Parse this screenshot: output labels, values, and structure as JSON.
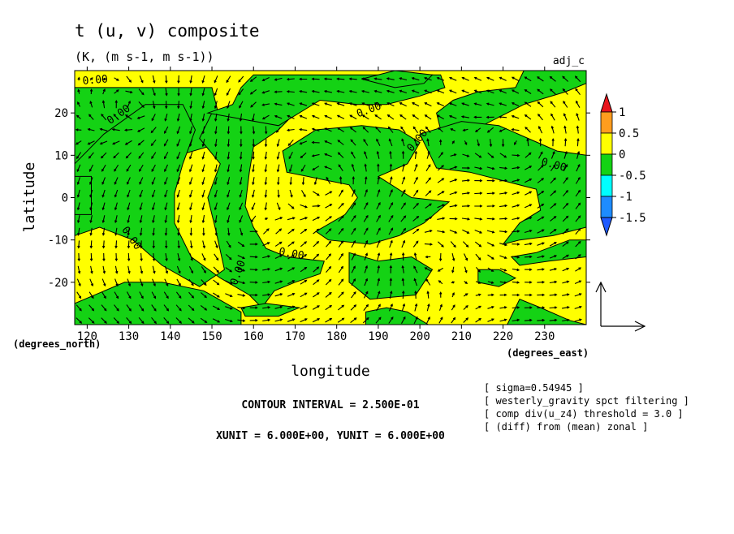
{
  "chart_data": {
    "type": "contour-vector",
    "title": "t (u, v) composite",
    "subtitle": "(K, (m s-1, m s-1))",
    "corner_label": "adj_c",
    "xlabel": "longitude",
    "ylabel": "latitude",
    "x_unit_label": "(degrees_east)",
    "y_unit_label": "(degrees_north)",
    "xlim": [
      117,
      240
    ],
    "ylim": [
      -30,
      30
    ],
    "x_ticks": [
      120,
      130,
      140,
      150,
      160,
      170,
      180,
      190,
      200,
      210,
      220,
      230
    ],
    "y_ticks": [
      -20,
      -10,
      0,
      10,
      20
    ],
    "colorbar": {
      "levels": [
        1,
        0.5,
        0,
        -0.5,
        -1,
        -1.5
      ],
      "colors": [
        "#e8141c",
        "#ff9d1e",
        "#ffff00",
        "#14d214",
        "#00ffff",
        "#1e8cff",
        "#1e5aff"
      ]
    },
    "background_color": "#ffff00",
    "contour_label": "0.00",
    "green_regions": [
      {
        "name": "west-band",
        "lonlat": [
          [
            117,
            26
          ],
          [
            150,
            26
          ],
          [
            152,
            18
          ],
          [
            149,
            12
          ],
          [
            135,
            8
          ],
          [
            128,
            2
          ],
          [
            133,
            -2
          ],
          [
            126,
            -5
          ],
          [
            117,
            -6
          ]
        ]
      },
      {
        "name": "west-arc",
        "lonlat": [
          [
            117,
            8
          ],
          [
            124,
            15
          ],
          [
            134,
            22
          ],
          [
            143,
            22
          ],
          [
            146,
            16
          ],
          [
            143,
            8
          ],
          [
            141,
            1
          ],
          [
            141,
            -6
          ],
          [
            145,
            -14
          ],
          [
            152,
            -19
          ],
          [
            159,
            -23
          ],
          [
            162,
            -26
          ],
          [
            165,
            -22
          ],
          [
            170,
            -20
          ],
          [
            176,
            -18
          ],
          [
            177,
            -15
          ],
          [
            168,
            -14
          ],
          [
            163,
            -12
          ],
          [
            160,
            -7
          ],
          [
            158,
            -2
          ],
          [
            159,
            6
          ],
          [
            160,
            12
          ],
          [
            166,
            16
          ],
          [
            169,
            19
          ],
          [
            159,
            22
          ],
          [
            150,
            20
          ],
          [
            147,
            14
          ],
          [
            152,
            8
          ],
          [
            149,
            0
          ],
          [
            151,
            -8
          ],
          [
            153,
            -17
          ],
          [
            147,
            -21
          ],
          [
            138,
            -16
          ],
          [
            131,
            -10
          ],
          [
            123,
            -7
          ],
          [
            117,
            -9
          ]
        ]
      },
      {
        "name": "south-west",
        "lonlat": [
          [
            117,
            -25
          ],
          [
            129,
            -20
          ],
          [
            138,
            -20
          ],
          [
            148,
            -22
          ],
          [
            157,
            -27
          ],
          [
            157,
            -30
          ],
          [
            117,
            -30
          ]
        ]
      },
      {
        "name": "central",
        "lonlat": [
          [
            166,
            17
          ],
          [
            176,
            23
          ],
          [
            185,
            22
          ],
          [
            192,
            22
          ],
          [
            200,
            24
          ],
          [
            206,
            26
          ],
          [
            205,
            29
          ],
          [
            160,
            29
          ],
          [
            157,
            26
          ],
          [
            155,
            22
          ],
          [
            149,
            20
          ]
        ]
      },
      {
        "name": "central-2",
        "lonlat": [
          [
            167,
            11
          ],
          [
            175,
            16
          ],
          [
            186,
            17
          ],
          [
            195,
            16
          ],
          [
            200,
            13
          ],
          [
            197,
            8
          ],
          [
            190,
            5
          ],
          [
            198,
            0
          ],
          [
            207,
            -1
          ],
          [
            201,
            -6
          ],
          [
            195,
            -9
          ],
          [
            188,
            -11
          ],
          [
            178,
            -10
          ],
          [
            175,
            -8
          ],
          [
            182,
            -4
          ],
          [
            185,
            0
          ],
          [
            183,
            3
          ],
          [
            178,
            4
          ],
          [
            168,
            6
          ]
        ]
      },
      {
        "name": "east-top",
        "lonlat": [
          [
            205,
            16
          ],
          [
            215,
            17
          ],
          [
            225,
            22
          ],
          [
            235,
            25
          ],
          [
            240,
            27
          ],
          [
            240,
            30
          ],
          [
            225,
            30
          ],
          [
            223,
            26
          ],
          [
            214,
            25
          ],
          [
            208,
            23
          ],
          [
            204,
            20
          ]
        ]
      },
      {
        "name": "east-mid",
        "lonlat": [
          [
            200,
            15
          ],
          [
            210,
            18
          ],
          [
            219,
            17
          ],
          [
            226,
            14
          ],
          [
            233,
            11
          ],
          [
            240,
            10
          ],
          [
            240,
            -7
          ],
          [
            232,
            -9
          ],
          [
            224,
            -10
          ],
          [
            220,
            -11
          ],
          [
            224,
            -6
          ],
          [
            229,
            -3
          ],
          [
            228,
            2
          ],
          [
            220,
            4
          ],
          [
            212,
            6
          ],
          [
            204,
            7
          ]
        ]
      },
      {
        "name": "top-right-blob",
        "lonlat": [
          [
            186,
            28
          ],
          [
            194,
            26
          ],
          [
            201,
            27
          ],
          [
            203,
            29
          ],
          [
            194,
            30
          ]
        ]
      },
      {
        "name": "sub-south",
        "lonlat": [
          [
            183,
            -13
          ],
          [
            190,
            -15
          ],
          [
            198,
            -14
          ],
          [
            203,
            -17
          ],
          [
            199,
            -23
          ],
          [
            188,
            -24
          ],
          [
            183,
            -20
          ]
        ]
      },
      {
        "name": "blob-se",
        "lonlat": [
          [
            214,
            -17
          ],
          [
            219,
            -17
          ],
          [
            223,
            -19
          ],
          [
            219,
            -21
          ],
          [
            214,
            -20
          ]
        ]
      },
      {
        "name": "east-low",
        "lonlat": [
          [
            222,
            -14
          ],
          [
            228,
            -13
          ],
          [
            236,
            -10
          ],
          [
            240,
            -10
          ],
          [
            240,
            -14
          ],
          [
            231,
            -15
          ],
          [
            224,
            -16
          ]
        ]
      },
      {
        "name": "bottom-center",
        "lonlat": [
          [
            157,
            -26
          ],
          [
            163,
            -25
          ],
          [
            171,
            -26
          ],
          [
            166,
            -28
          ],
          [
            158,
            -28
          ]
        ]
      },
      {
        "name": "bottom-east",
        "lonlat": [
          [
            187,
            -27
          ],
          [
            192,
            -26
          ],
          [
            197,
            -27
          ],
          [
            202,
            -30
          ],
          [
            187,
            -30
          ]
        ]
      },
      {
        "name": "bottom-right",
        "lonlat": [
          [
            221,
            -30
          ],
          [
            224,
            -24
          ],
          [
            229,
            -26
          ],
          [
            236,
            -29
          ],
          [
            240,
            -30
          ]
        ]
      },
      {
        "name": "left-edge",
        "lonlat": [
          [
            117,
            5
          ],
          [
            121,
            5
          ],
          [
            121,
            -4
          ],
          [
            117,
            -4
          ]
        ]
      }
    ],
    "contour_label_positions": [
      {
        "lon": 122,
        "lat": 27,
        "angle": -5
      },
      {
        "lon": 128,
        "lat": 19,
        "angle": -35
      },
      {
        "lon": 130,
        "lat": -10,
        "angle": 55
      },
      {
        "lon": 157,
        "lat": -18,
        "angle": -70
      },
      {
        "lon": 169,
        "lat": -14,
        "angle": 10
      },
      {
        "lon": 188,
        "lat": 20,
        "angle": -20
      },
      {
        "lon": 200,
        "lat": 13,
        "angle": -50
      },
      {
        "lon": 232,
        "lat": 7,
        "angle": 15
      }
    ],
    "vector_field": {
      "grid_step_lon": 3,
      "grid_step_lat": 3,
      "reference_vector": true
    },
    "annotations": [
      "CONTOUR INTERVAL = 2.500E-01",
      "XUNIT = 6.000E+00, YUNIT = 6.000E+00",
      "[ sigma=0.54945 ]",
      "[ westerly_gravity spct filtering ]",
      "[ comp div(u_z4) threshold = 3.0 ]",
      "[ (diff) from (mean) zonal ]"
    ]
  }
}
